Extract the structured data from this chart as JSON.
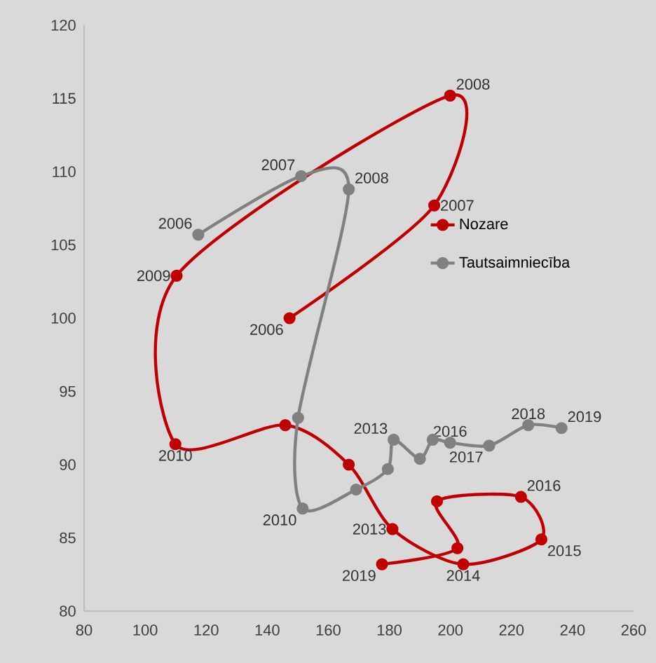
{
  "chart_data": {
    "type": "line",
    "xlim": [
      80,
      260
    ],
    "ylim": [
      80,
      120
    ],
    "xticks": [
      80,
      100,
      120,
      140,
      160,
      180,
      200,
      220,
      240,
      260
    ],
    "yticks": [
      80,
      85,
      90,
      95,
      100,
      105,
      110,
      115,
      120
    ],
    "grid": false,
    "legend": "right",
    "marker": "circle",
    "line_style": "solid",
    "series": [
      {
        "name": "Nozare",
        "color": "#c00000",
        "x": [
          147.3,
          194.7,
          199.9,
          110.3,
          109.9,
          145.9,
          166.7,
          181.0,
          204.2,
          229.8,
          223.1,
          195.6,
          202.3,
          177.6
        ],
        "values": [
          100.0,
          107.7,
          115.2,
          102.9,
          91.4,
          92.7,
          90.0,
          85.6,
          83.2,
          84.9,
          87.8,
          87.5,
          84.3,
          83.2
        ]
      },
      {
        "name": "Tautsaimniecība",
        "color": "#808080",
        "x": [
          117.4,
          151.1,
          166.7,
          150.1,
          151.6,
          169.1,
          179.5,
          181.4,
          190.0,
          194.2,
          199.9,
          212.7,
          225.5,
          236.4
        ],
        "values": [
          105.7,
          109.7,
          108.8,
          93.2,
          87.0,
          88.3,
          89.7,
          91.7,
          90.4,
          91.7,
          91.5,
          91.3,
          92.7,
          92.5
        ]
      }
    ],
    "annotations": [
      {
        "text": "2006",
        "x": 147.3,
        "y": 100.0
      },
      {
        "text": "2007",
        "x": 194.7,
        "y": 107.7
      },
      {
        "text": "2008",
        "x": 199.9,
        "y": 115.2
      },
      {
        "text": "2009",
        "x": 110.3,
        "y": 102.9
      },
      {
        "text": "2010",
        "x": 109.9,
        "y": 91.4
      },
      {
        "text": "2013",
        "x": 181.0,
        "y": 85.6
      },
      {
        "text": "2014",
        "x": 204.2,
        "y": 83.2
      },
      {
        "text": "2015",
        "x": 229.8,
        "y": 84.9
      },
      {
        "text": "2016",
        "x": 223.1,
        "y": 87.8
      },
      {
        "text": "2019",
        "x": 177.6,
        "y": 83.2
      },
      {
        "text": "2006",
        "x": 117.4,
        "y": 105.7
      },
      {
        "text": "2007",
        "x": 151.1,
        "y": 109.7
      },
      {
        "text": "2008",
        "x": 166.7,
        "y": 108.8
      },
      {
        "text": "2010",
        "x": 151.6,
        "y": 87.0
      },
      {
        "text": "2013",
        "x": 181.4,
        "y": 91.7
      },
      {
        "text": "2016",
        "x": 199.9,
        "y": 91.5
      },
      {
        "text": "2017",
        "x": 212.7,
        "y": 91.3
      },
      {
        "text": "2018",
        "x": 225.5,
        "y": 92.7
      },
      {
        "text": "2019",
        "x": 236.4,
        "y": 92.5
      }
    ]
  }
}
